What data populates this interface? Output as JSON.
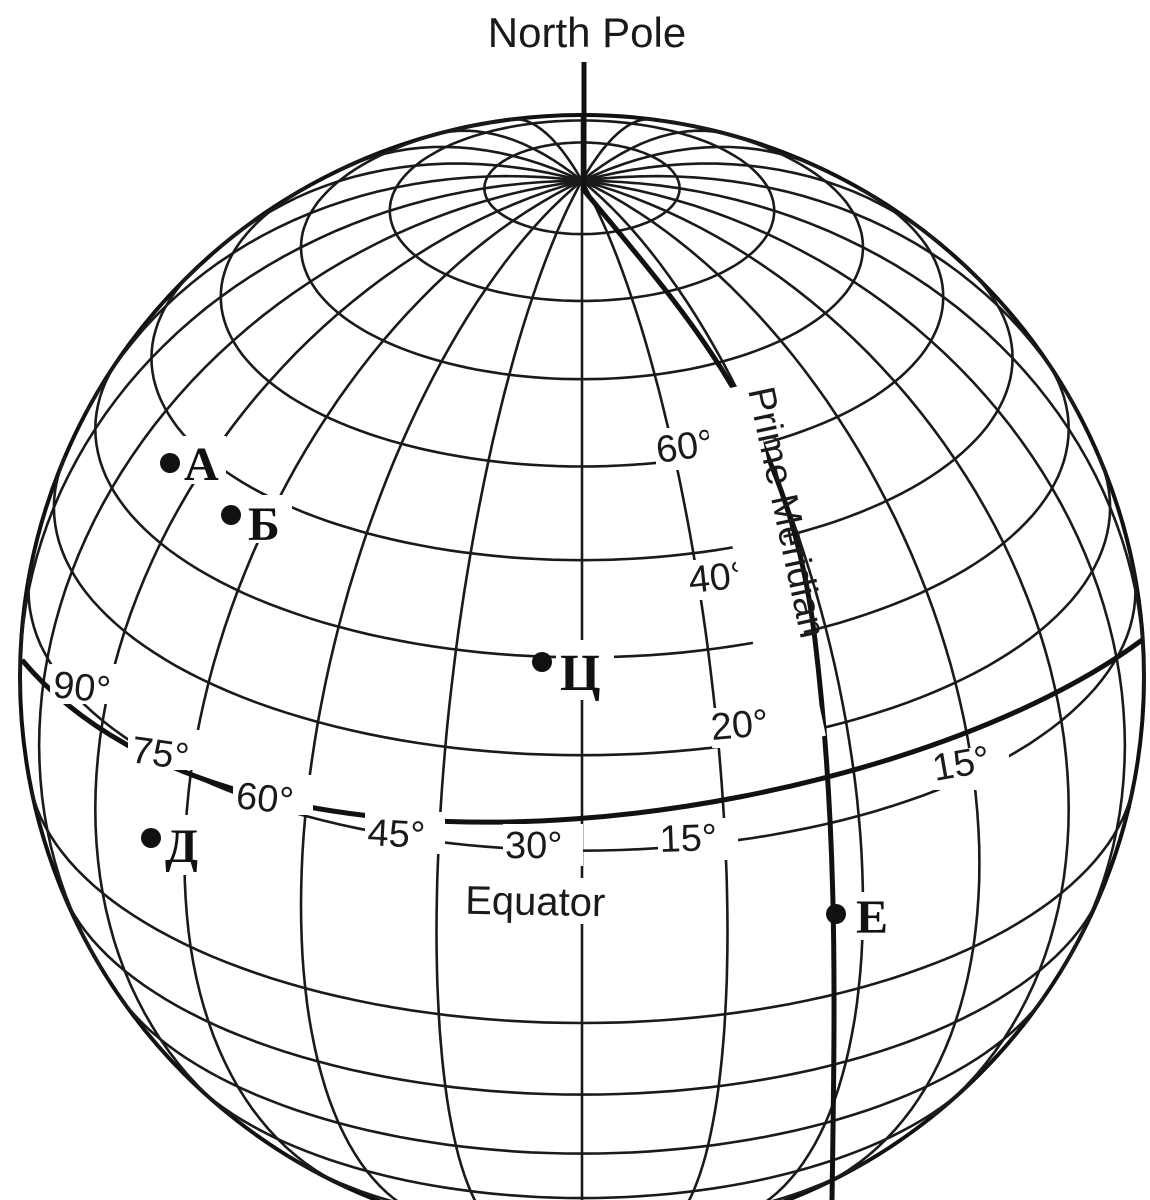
{
  "title": "North Pole",
  "equator_label": "Equator",
  "prime_meridian_label": "Prime Meridian",
  "latitude_labels": [
    "60°",
    "40°",
    "20°"
  ],
  "longitude_labels": [
    "90°",
    "75°",
    "60°",
    "45°",
    "30°",
    "15°"
  ],
  "east_longitude_label": "15°",
  "points": [
    {
      "label": "А"
    },
    {
      "label": "Б"
    },
    {
      "label": "Ц"
    },
    {
      "label": "Д"
    },
    {
      "label": "Е"
    }
  ],
  "colors": {
    "ink": "#1a1a1a",
    "background": "#ffffff"
  }
}
